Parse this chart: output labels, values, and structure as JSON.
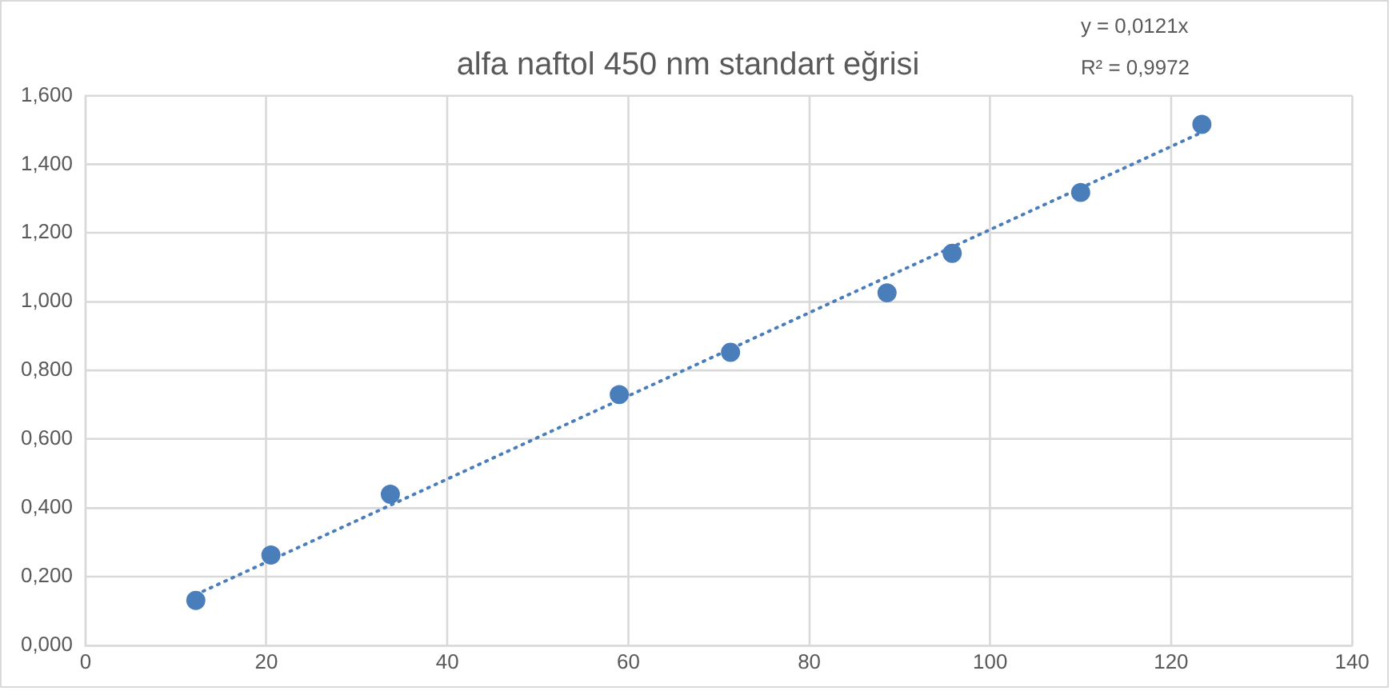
{
  "chart_data": {
    "type": "scatter",
    "title": "alfa naftol 450 nm standart eğrisi",
    "annotations": [
      "y = 0,0121x",
      "R² = 0,9972"
    ],
    "series": [
      {
        "color": "#4a7ebb",
        "x": [
          12.2,
          20.5,
          33.7,
          59.0,
          71.3,
          88.6,
          95.8,
          110.0,
          123.4
        ],
        "values": [
          0.131,
          0.263,
          0.44,
          0.73,
          0.853,
          1.026,
          1.141,
          1.318,
          1.516
        ],
        "marker": "circle"
      },
      {
        "type": "line",
        "color": "#4a7ebb",
        "x": [
          12.2,
          123.4
        ],
        "values": [
          0.148,
          1.493
        ],
        "marker": "none",
        "line_style": "dotted"
      }
    ],
    "xlim": [
      0,
      140
    ],
    "xticks": [
      0,
      20,
      40,
      60,
      80,
      100,
      120,
      140
    ],
    "ylim": [
      0,
      1.6
    ],
    "yticks": [
      {
        "value": 0,
        "label": "0,000"
      },
      {
        "value": 0.2,
        "label": "0,200"
      },
      {
        "value": 0.4,
        "label": "0,400"
      },
      {
        "value": 0.6,
        "label": "0,600"
      },
      {
        "value": 0.8,
        "label": "0,800"
      },
      {
        "value": 1,
        "label": "1,000"
      },
      {
        "value": 1.2,
        "label": "1,200"
      },
      {
        "value": 1.4,
        "label": "1,400"
      },
      {
        "value": 1.6,
        "label": "1,600"
      }
    ],
    "grid": true,
    "legend": false
  }
}
